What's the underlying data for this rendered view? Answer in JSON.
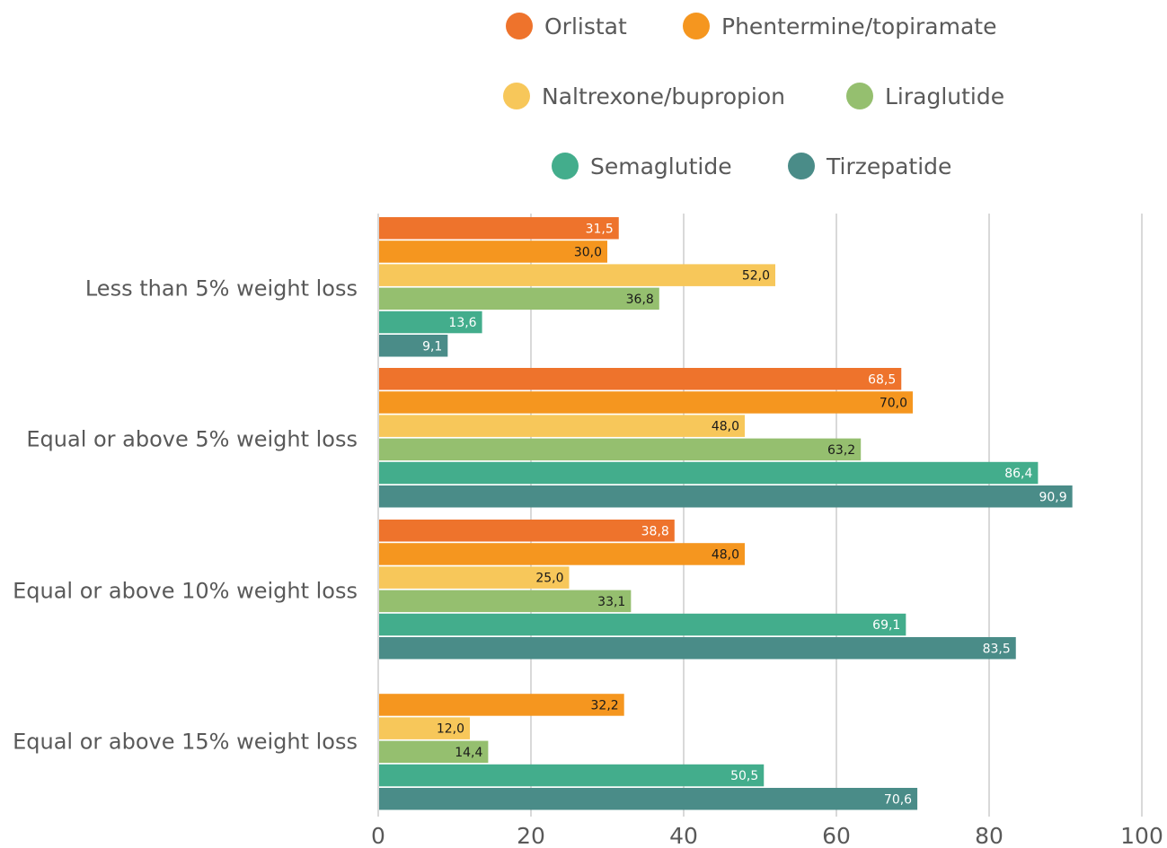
{
  "chart_data": {
    "type": "bar",
    "orientation": "horizontal",
    "categories": [
      "Less than 5% weight loss",
      "Equal or above 5% weight loss",
      "Equal or above 10% weight loss",
      "Equal or above 15% weight loss"
    ],
    "series": [
      {
        "name": "Orlistat",
        "color": "#ee732c",
        "label_color": "#ffffff",
        "values": [
          31.5,
          68.5,
          38.8,
          null
        ]
      },
      {
        "name": "Phentermine/topiramate",
        "color": "#f5961f",
        "label_color": "#1a1a1a",
        "values": [
          30.0,
          70.0,
          48.0,
          32.2
        ]
      },
      {
        "name": "Naltrexone/bupropion",
        "color": "#f7c75a",
        "label_color": "#1a1a1a",
        "values": [
          52.0,
          48.0,
          25.0,
          12.0
        ]
      },
      {
        "name": "Liraglutide",
        "color": "#95bf6f",
        "label_color": "#1a1a1a",
        "values": [
          36.8,
          63.2,
          33.1,
          14.4
        ]
      },
      {
        "name": "Semaglutide",
        "color": "#43ad8c",
        "label_color": "#ffffff",
        "values": [
          13.6,
          86.4,
          69.1,
          50.5
        ]
      },
      {
        "name": "Tirzepatide",
        "color": "#4a8c88",
        "label_color": "#ffffff",
        "values": [
          9.1,
          90.9,
          83.5,
          70.6
        ]
      }
    ],
    "value_labels": [
      [
        "31,5",
        "68,5",
        "38,8",
        ""
      ],
      [
        "30,0",
        "70,0",
        "48,0",
        "32,2"
      ],
      [
        "52,0",
        "48,0",
        "25,0",
        "12,0"
      ],
      [
        "36,8",
        "63,2",
        "33,1",
        "14,4"
      ],
      [
        "13,6",
        "86,4",
        "69,1",
        "50,5"
      ],
      [
        "9,1",
        "90,9",
        "83,5",
        "70,6"
      ]
    ],
    "xlim": [
      0,
      100
    ],
    "xticks": [
      "0",
      "20",
      "40",
      "60",
      "80",
      "100"
    ],
    "grid": true,
    "legend_position": "top-center",
    "title": "",
    "xlabel": "",
    "ylabel": ""
  }
}
